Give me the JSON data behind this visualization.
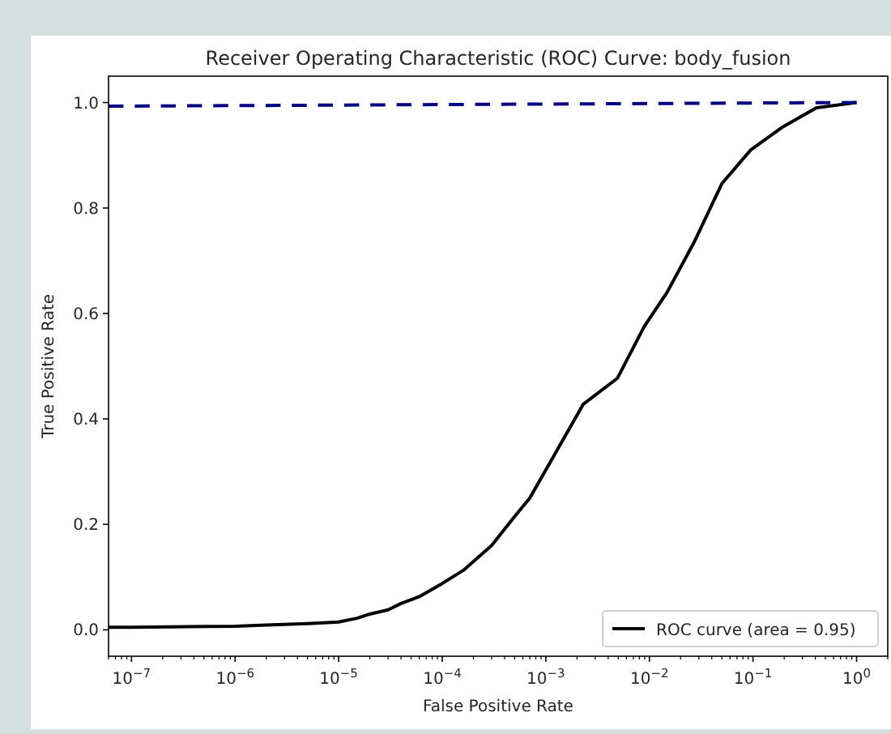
{
  "chart_data": {
    "type": "line",
    "title": "Receiver Operating Characteristic (ROC) Curve: body_fusion",
    "xlabel": "False Positive Rate",
    "ylabel": "True Positive Rate",
    "log": "x",
    "xlim": [
      6e-08,
      2
    ],
    "ylim": [
      -0.05,
      1.05
    ],
    "xticks": [
      {
        "value": 1e-07,
        "label": "10$^{−7}$"
      },
      {
        "value": 1e-06,
        "label": "10$^{−6}$"
      },
      {
        "value": 1e-05,
        "label": "10$^{−5}$"
      },
      {
        "value": 0.0001,
        "label": "10$^{−4}$"
      },
      {
        "value": 0.001,
        "label": "10$^{−3}$"
      },
      {
        "value": 0.01,
        "label": "10$^{−2}$"
      },
      {
        "value": 0.1,
        "label": "10$^{−1}$"
      },
      {
        "value": 1,
        "label": "10$^{0}$"
      }
    ],
    "yticks": [
      {
        "value": 0,
        "label": "0.0"
      },
      0.2,
      0.4,
      0.6,
      0.8,
      {
        "value": 1,
        "label": "1.0"
      }
    ],
    "grid": false,
    "legend": "bottom right",
    "series": [
      {
        "name": "ROC curve (area = 0.95)",
        "color": "#000000",
        "line_style": "solid",
        "x": [
          6e-08,
          1e-07,
          1e-06,
          2e-06,
          5e-06,
          1e-05,
          1.5e-05,
          2e-05,
          3e-05,
          4e-05,
          6e-05,
          0.0001,
          0.00016,
          0.0003,
          0.0005,
          0.0007,
          0.00126,
          0.0023,
          0.0049,
          0.0089,
          0.0148,
          0.027,
          0.05,
          0.095,
          0.195,
          0.41,
          1
        ],
        "values": [
          0.005,
          0.005,
          0.007,
          0.009,
          0.012,
          0.015,
          0.022,
          0.03,
          0.038,
          0.05,
          0.063,
          0.088,
          0.113,
          0.16,
          0.215,
          0.25,
          0.338,
          0.428,
          0.477,
          0.575,
          0.64,
          0.735,
          0.846,
          0.91,
          0.954,
          0.99,
          1.0
        ]
      },
      {
        "color": "#000080",
        "line_style": "dashed",
        "x": [
          6e-08,
          1
        ],
        "values": [
          0.993,
          1.0
        ]
      }
    ]
  }
}
